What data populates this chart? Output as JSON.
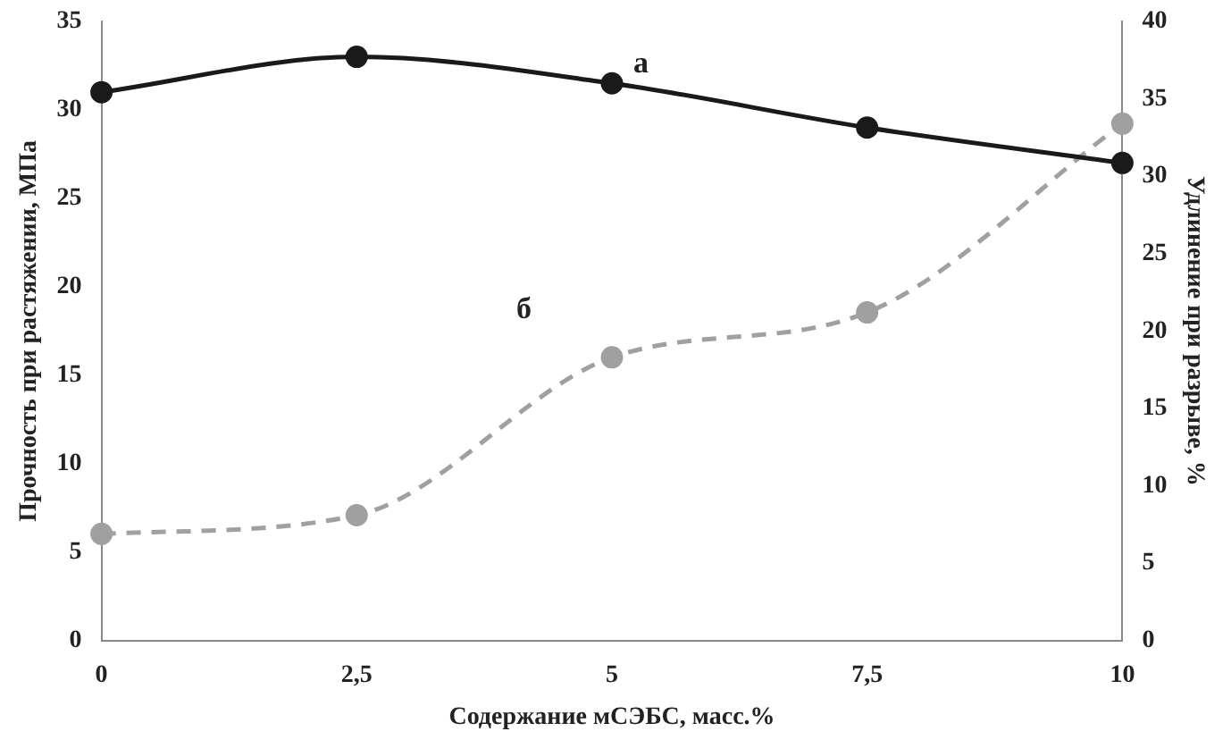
{
  "chart_data": {
    "type": "line",
    "xlabel": "Содержание мСЭБС, масс.%",
    "ylabel": "Прочность при растяжении, МПа",
    "y2label": "Удлинение при разрыве, %",
    "categories": [
      "0",
      "2,5",
      "5",
      "7,5",
      "10"
    ],
    "series": [
      {
        "name": "а",
        "color": "#1a1a1a",
        "values": [
          31,
          33,
          31.5,
          29,
          27
        ],
        "line_style": "solid"
      },
      {
        "name": "б",
        "color": "#a0a0a0",
        "values": [
          6.9,
          8.1,
          18.3,
          21.2,
          33.4
        ],
        "axis": "y2",
        "line_style": "dashed"
      }
    ],
    "ylim": [
      0,
      35
    ],
    "yticks": [
      0,
      5,
      10,
      15,
      20,
      25,
      30,
      35
    ],
    "y2lim": [
      0,
      40
    ],
    "y2ticks": [
      0,
      5,
      10,
      15,
      20,
      25,
      30,
      35,
      40
    ],
    "marker": "circle",
    "legend": false
  }
}
